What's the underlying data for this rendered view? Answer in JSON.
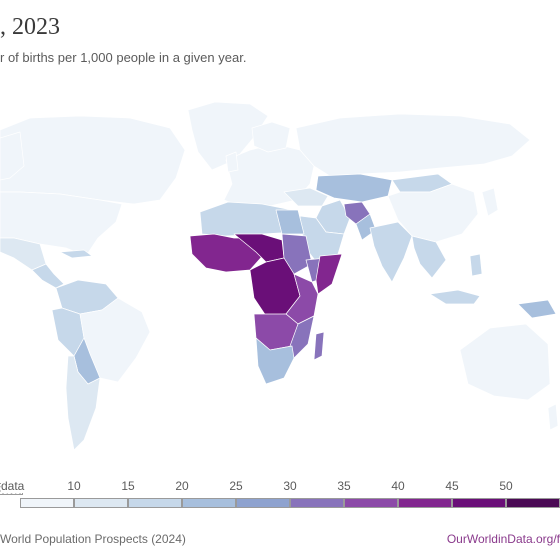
{
  "title": ", 2023",
  "subtitle": "r of births per 1,000 people in a given year.",
  "legend": {
    "no_data_label": "data",
    "ticks": [
      "10",
      "15",
      "20",
      "25",
      "30",
      "35",
      "40",
      "45",
      "50"
    ],
    "colors": [
      "#f0f5fa",
      "#dde8f2",
      "#c6d8ea",
      "#a7bfdd",
      "#8ea2cf",
      "#8873bb",
      "#8c4aa8",
      "#82268f",
      "#6a0f78",
      "#4b0a55"
    ]
  },
  "source_text": "World Population Prospects (2024)",
  "owid_text": "OurWorldinData.org/f"
}
